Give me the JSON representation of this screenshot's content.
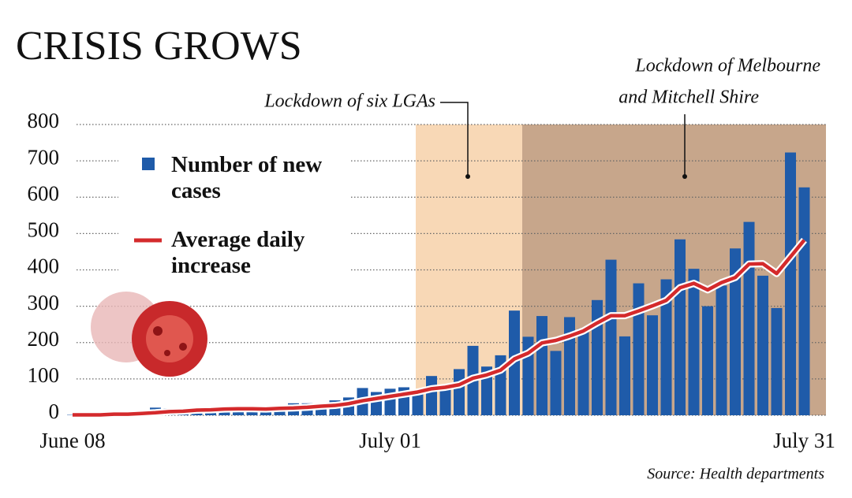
{
  "chart_data": {
    "type": "bar",
    "title": "CRISIS GROWS",
    "source": "Source: Health departments",
    "annotations": [
      "Lockdown of six LGAs",
      "Lockdown of Melbourne",
      "and Mitchell Shire"
    ],
    "categories": [
      "June 08",
      null,
      null,
      null,
      null,
      null,
      null,
      null,
      null,
      null,
      null,
      null,
      null,
      null,
      null,
      null,
      null,
      null,
      null,
      null,
      null,
      null,
      null,
      "July 01",
      null,
      null,
      null,
      null,
      null,
      null,
      null,
      null,
      null,
      null,
      null,
      null,
      null,
      null,
      null,
      null,
      null,
      null,
      null,
      null,
      null,
      null,
      null,
      null,
      null,
      null,
      null,
      null,
      null,
      "July 31"
    ],
    "series": [
      {
        "name": "Number of new cases",
        "color": "#1f5ba9",
        "type": "bar",
        "values": [
          1,
          2,
          1,
          8,
          4,
          12,
          21,
          19,
          12,
          21,
          18,
          13,
          25,
          16,
          17,
          20,
          33,
          33,
          30,
          41,
          49,
          75,
          64,
          73,
          77,
          66,
          108,
          74,
          127,
          191,
          134,
          165,
          288,
          216,
          273,
          177,
          270,
          238,
          317,
          428,
          217,
          363,
          275,
          374,
          484,
          403,
          300,
          357,
          459,
          532,
          384,
          295,
          723,
          627
        ]
      },
      {
        "name": "Average daily increase",
        "color": "#d42a2c",
        "type": "line",
        "values": [
          1,
          1,
          1,
          3,
          3,
          5,
          7,
          10,
          11,
          14,
          15,
          17,
          18,
          18,
          17,
          19,
          20,
          22,
          25,
          27,
          32,
          40,
          46,
          52,
          58,
          64,
          73,
          77,
          84,
          102,
          111,
          124,
          155,
          171,
          199,
          206,
          218,
          232,
          254,
          274,
          274,
          287,
          301,
          316,
          351,
          363,
          345,
          365,
          379,
          416,
          417,
          390,
          436,
          482
        ]
      }
    ],
    "ylim": [
      0,
      800
    ],
    "yticks": [
      0,
      100,
      200,
      300,
      400,
      500,
      600,
      700,
      800
    ],
    "grid": true
  }
}
